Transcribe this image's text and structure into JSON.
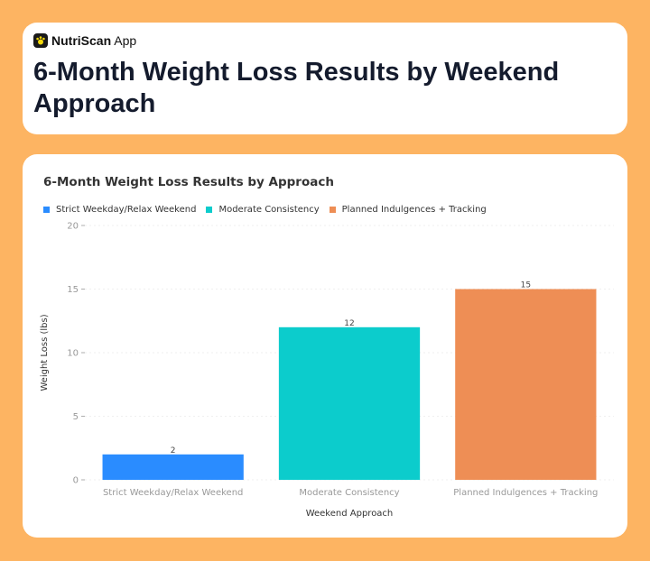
{
  "app": {
    "name_bold": "NutriScan",
    "name_rest": " App"
  },
  "header": {
    "title": "6-Month Weight Loss Results by Weekend Approach"
  },
  "colors": {
    "background": "#FDB462",
    "tick": "#999999",
    "grid": "#e0e0e0"
  },
  "chart_data": {
    "type": "bar",
    "title": "6-Month Weight Loss Results by Approach",
    "xlabel": "Weekend Approach",
    "ylabel": "Weight Loss (lbs)",
    "ylim": [
      0,
      20
    ],
    "yticks": [
      0,
      5,
      10,
      15,
      20
    ],
    "grid": true,
    "legend_position": "top-left",
    "categories": [
      "Strict Weekday/Relax Weekend",
      "Moderate Consistency",
      "Planned Indulgences + Tracking"
    ],
    "values": [
      2,
      12,
      15
    ],
    "colors": [
      "#2a8cff",
      "#0ccccc",
      "#ee8e55"
    ],
    "series": [
      {
        "name": "Strict Weekday/Relax Weekend"
      },
      {
        "name": "Moderate Consistency"
      },
      {
        "name": "Planned Indulgences + Tracking"
      }
    ]
  }
}
